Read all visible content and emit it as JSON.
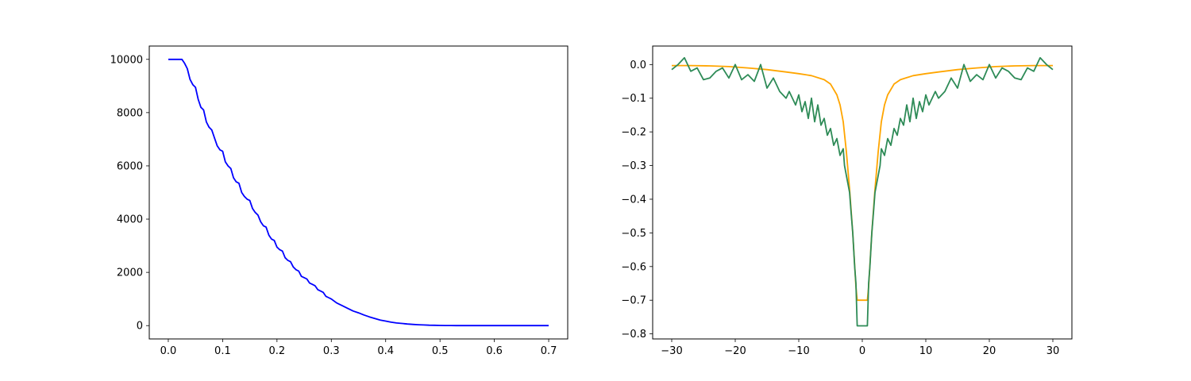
{
  "chart_data": [
    {
      "type": "line",
      "title": "",
      "xlabel": "",
      "ylabel": "",
      "xlim": [
        -0.035,
        0.735
      ],
      "ylim": [
        -500,
        10500
      ],
      "xticks": [
        0.0,
        0.1,
        0.2,
        0.3,
        0.4,
        0.5,
        0.6,
        0.7
      ],
      "xtick_labels": [
        "0.0",
        "0.1",
        "0.2",
        "0.3",
        "0.4",
        "0.5",
        "0.6",
        "0.7"
      ],
      "yticks": [
        0,
        2000,
        4000,
        6000,
        8000,
        10000
      ],
      "ytick_labels": [
        "0",
        "2000",
        "4000",
        "6000",
        "8000",
        "10000"
      ],
      "grid": false,
      "series": [
        {
          "color": "#0000ff",
          "x": [
            0.0,
            0.025,
            0.03,
            0.035,
            0.04,
            0.045,
            0.05,
            0.055,
            0.06,
            0.065,
            0.07,
            0.075,
            0.08,
            0.085,
            0.09,
            0.095,
            0.1,
            0.105,
            0.11,
            0.115,
            0.12,
            0.125,
            0.13,
            0.135,
            0.14,
            0.145,
            0.15,
            0.155,
            0.16,
            0.165,
            0.17,
            0.175,
            0.18,
            0.185,
            0.19,
            0.195,
            0.2,
            0.205,
            0.21,
            0.215,
            0.22,
            0.225,
            0.23,
            0.235,
            0.24,
            0.245,
            0.25,
            0.255,
            0.26,
            0.265,
            0.27,
            0.275,
            0.28,
            0.285,
            0.29,
            0.295,
            0.3,
            0.31,
            0.32,
            0.33,
            0.34,
            0.35,
            0.36,
            0.37,
            0.38,
            0.39,
            0.4,
            0.41,
            0.42,
            0.43,
            0.44,
            0.45,
            0.46,
            0.47,
            0.48,
            0.49,
            0.5,
            0.51,
            0.52,
            0.53,
            0.54,
            0.55,
            0.56,
            0.57,
            0.58,
            0.6,
            0.62,
            0.65,
            0.68,
            0.7
          ],
          "y": [
            10000,
            10000,
            9850,
            9650,
            9250,
            9050,
            8950,
            8500,
            8200,
            8100,
            7650,
            7450,
            7350,
            7050,
            6750,
            6600,
            6550,
            6150,
            6000,
            5900,
            5550,
            5400,
            5350,
            5000,
            4850,
            4750,
            4700,
            4400,
            4250,
            4150,
            3900,
            3750,
            3700,
            3400,
            3250,
            3200,
            2950,
            2850,
            2800,
            2550,
            2450,
            2400,
            2200,
            2100,
            2050,
            1850,
            1800,
            1750,
            1600,
            1550,
            1500,
            1350,
            1300,
            1250,
            1100,
            1050,
            1000,
            850,
            750,
            650,
            550,
            480,
            400,
            330,
            270,
            210,
            170,
            130,
            100,
            80,
            60,
            45,
            33,
            24,
            17,
            12,
            8,
            5,
            3,
            2,
            1,
            1,
            0,
            0,
            0,
            0,
            0,
            0,
            0,
            0
          ]
        }
      ]
    },
    {
      "type": "line",
      "title": "",
      "xlabel": "",
      "ylabel": "",
      "xlim": [
        -33,
        33
      ],
      "ylim": [
        -0.815,
        0.055
      ],
      "xticks": [
        -30,
        -20,
        -10,
        0,
        10,
        20,
        30
      ],
      "xtick_labels": [
        "−30",
        "−20",
        "−10",
        "0",
        "10",
        "20",
        "30"
      ],
      "yticks": [
        0.0,
        -0.1,
        -0.2,
        -0.3,
        -0.4,
        -0.5,
        -0.6,
        -0.7,
        -0.8
      ],
      "ytick_labels": [
        "0.0",
        "−0.1",
        "−0.2",
        "−0.3",
        "−0.4",
        "−0.5",
        "−0.6",
        "−0.7",
        "−0.8"
      ],
      "grid": false,
      "series": [
        {
          "color": "#ffa500",
          "x": [
            -30,
            -27,
            -24,
            -21,
            -18,
            -15,
            -12,
            -10,
            -8,
            -6,
            -5,
            -4,
            -3.5,
            -3,
            -2.5,
            -2,
            -1.5,
            -1,
            -0.8,
            0.8,
            1,
            1.5,
            2,
            2.5,
            3,
            3.5,
            4,
            5,
            6,
            8,
            10,
            12,
            15,
            18,
            21,
            24,
            27,
            30
          ],
          "y": [
            -0.003,
            -0.003,
            -0.004,
            -0.006,
            -0.01,
            -0.015,
            -0.022,
            -0.027,
            -0.033,
            -0.045,
            -0.058,
            -0.09,
            -0.12,
            -0.17,
            -0.26,
            -0.37,
            -0.5,
            -0.66,
            -0.7,
            -0.7,
            -0.66,
            -0.5,
            -0.37,
            -0.26,
            -0.17,
            -0.12,
            -0.09,
            -0.058,
            -0.045,
            -0.033,
            -0.027,
            -0.022,
            -0.015,
            -0.01,
            -0.006,
            -0.004,
            -0.003,
            -0.003
          ]
        },
        {
          "color": "#2e8b57",
          "x": [
            -30,
            -29,
            -28,
            -27,
            -26,
            -25,
            -24,
            -23,
            -22,
            -21,
            -20,
            -19,
            -18,
            -17,
            -16,
            -15,
            -14,
            -13,
            -12,
            -11.5,
            -11,
            -10.5,
            -10,
            -9.5,
            -9,
            -8.5,
            -8,
            -7.5,
            -7,
            -6.5,
            -6,
            -5.5,
            -5,
            -4.5,
            -4,
            -3.5,
            -3,
            -2.8,
            -2.5,
            -2.2,
            -2,
            -1.8,
            -1.5,
            -1.2,
            -1,
            -0.8,
            0.8,
            1,
            1.2,
            1.5,
            1.8,
            2,
            2.2,
            2.5,
            2.8,
            3,
            3.5,
            4,
            4.5,
            5,
            5.5,
            6,
            6.5,
            7,
            7.5,
            8,
            8.5,
            9,
            9.5,
            10,
            10.5,
            11,
            11.5,
            12,
            13,
            14,
            15,
            16,
            17,
            18,
            19,
            20,
            21,
            22,
            23,
            24,
            25,
            26,
            27,
            28,
            29,
            30
          ],
          "y": [
            -0.015,
            0.0,
            0.02,
            -0.02,
            -0.01,
            -0.045,
            -0.04,
            -0.02,
            -0.01,
            -0.04,
            0.0,
            -0.045,
            -0.03,
            -0.05,
            0.0,
            -0.07,
            -0.04,
            -0.08,
            -0.1,
            -0.08,
            -0.1,
            -0.12,
            -0.09,
            -0.14,
            -0.11,
            -0.16,
            -0.1,
            -0.17,
            -0.12,
            -0.18,
            -0.16,
            -0.21,
            -0.19,
            -0.24,
            -0.22,
            -0.27,
            -0.25,
            -0.3,
            -0.33,
            -0.36,
            -0.38,
            -0.43,
            -0.5,
            -0.6,
            -0.65,
            -0.776,
            -0.776,
            -0.65,
            -0.6,
            -0.5,
            -0.43,
            -0.38,
            -0.36,
            -0.33,
            -0.3,
            -0.25,
            -0.27,
            -0.22,
            -0.24,
            -0.19,
            -0.21,
            -0.16,
            -0.18,
            -0.12,
            -0.17,
            -0.1,
            -0.16,
            -0.11,
            -0.14,
            -0.09,
            -0.12,
            -0.1,
            -0.08,
            -0.1,
            -0.08,
            -0.04,
            -0.07,
            0.0,
            -0.05,
            -0.03,
            -0.045,
            0.0,
            -0.04,
            -0.01,
            -0.02,
            -0.04,
            -0.045,
            -0.01,
            -0.02,
            0.02,
            0.0,
            -0.015
          ]
        }
      ]
    }
  ]
}
